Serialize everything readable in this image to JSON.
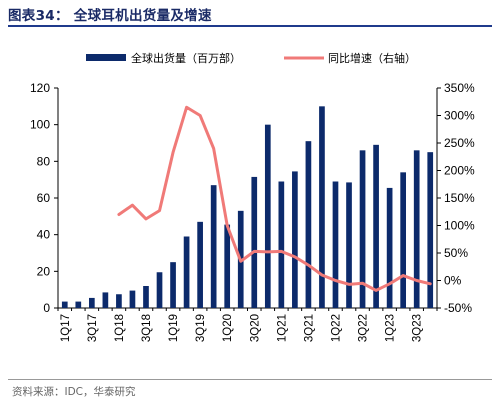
{
  "header": {
    "title": "图表34： 全球耳机出货量及增速"
  },
  "footer": {
    "source": "资料来源：IDC，华泰研究"
  },
  "colors": {
    "bar": "#0c2a6b",
    "line": "#f07a78",
    "title": "#1a2a66",
    "rule": "#1f3a8c"
  },
  "chart_data": {
    "type": "bar",
    "categories": [
      "1Q17",
      "2Q17",
      "3Q17",
      "4Q17",
      "1Q18",
      "2Q18",
      "3Q18",
      "4Q18",
      "1Q19",
      "2Q19",
      "3Q19",
      "4Q19",
      "1Q20",
      "2Q20",
      "3Q20",
      "4Q20",
      "1Q21",
      "2Q21",
      "3Q21",
      "4Q21",
      "1Q22",
      "2Q22",
      "3Q22",
      "4Q22",
      "1Q23",
      "2Q23",
      "3Q23",
      "4Q23"
    ],
    "tick_labels": [
      "1Q17",
      "3Q17",
      "1Q18",
      "3Q18",
      "1Q19",
      "3Q19",
      "1Q20",
      "3Q20",
      "1Q21",
      "3Q21",
      "1Q22",
      "3Q22",
      "1Q23",
      "3Q23"
    ],
    "series": [
      {
        "name": "全球出货量（百万部）",
        "type": "bar",
        "axis": "left",
        "values": [
          3.5,
          3.5,
          5.5,
          8.5,
          7.5,
          9.5,
          12,
          19.5,
          25,
          39,
          47,
          67,
          45.5,
          53,
          71.5,
          100,
          69,
          74.5,
          91,
          110,
          69,
          68.5,
          86,
          89,
          65.5,
          74,
          86,
          85
        ]
      },
      {
        "name": "同比增速（右轴）",
        "type": "line",
        "axis": "right",
        "values": [
          null,
          null,
          null,
          null,
          120,
          137,
          112,
          127,
          233,
          315,
          300,
          240,
          100,
          35,
          53,
          52,
          53,
          43,
          28,
          10,
          0,
          -7,
          -5,
          -18,
          -6,
          9,
          0,
          -6
        ]
      }
    ],
    "ylim_left": [
      0,
      120
    ],
    "yticks_left": [
      0,
      20,
      40,
      60,
      80,
      100,
      120
    ],
    "ylim_right": [
      -50,
      350
    ],
    "yticks_right": [
      "-50%",
      "0%",
      "50%",
      "100%",
      "150%",
      "200%",
      "250%",
      "300%",
      "350%"
    ],
    "legend_position": "top",
    "grid": false
  }
}
